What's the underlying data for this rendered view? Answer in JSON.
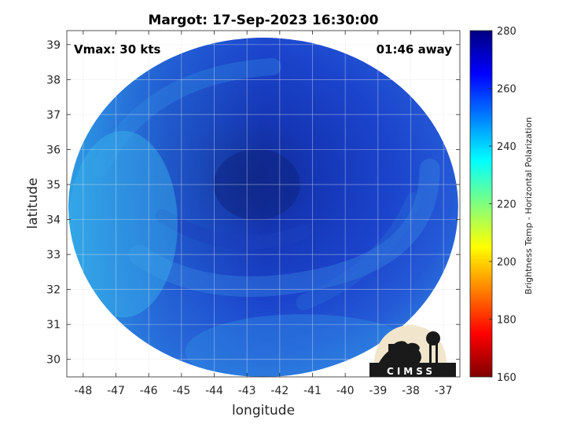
{
  "chart_data": {
    "type": "heatmap",
    "title": "Margot: 17-Sep-2023 16:30:00",
    "xlabel": "longitude",
    "ylabel": "latitude",
    "xlim": [
      -48.5,
      -36.5
    ],
    "ylim": [
      29.5,
      39.4
    ],
    "xticks": [
      -48,
      -47,
      -46,
      -45,
      -44,
      -43,
      -42,
      -41,
      -40,
      -39,
      -38,
      -37
    ],
    "yticks": [
      30,
      31,
      32,
      33,
      34,
      35,
      36,
      37,
      38,
      39
    ],
    "grid": true,
    "colorbar": {
      "label": "Brightness Temp - Horizontal Polarization",
      "range": [
        160,
        280
      ],
      "ticks": [
        160,
        180,
        200,
        220,
        240,
        260,
        280
      ],
      "colormap": "jet"
    },
    "annotations": {
      "vmax": "Vmax: 30 kts",
      "time_away": "01:46 away"
    },
    "storm_center": {
      "lon": -42.7,
      "lat": 35.0
    },
    "swath": {
      "center_lon": -42.5,
      "center_lat": 34.35,
      "radius_lon": 5.95,
      "radius_lat": 4.85
    },
    "field": {
      "background_value": 252,
      "core_value": 268
    }
  },
  "logo": {
    "text": "CIMSS"
  },
  "colors": {
    "axis": "#262626",
    "grid": "#e6e6e6",
    "background": "#ffffff"
  }
}
